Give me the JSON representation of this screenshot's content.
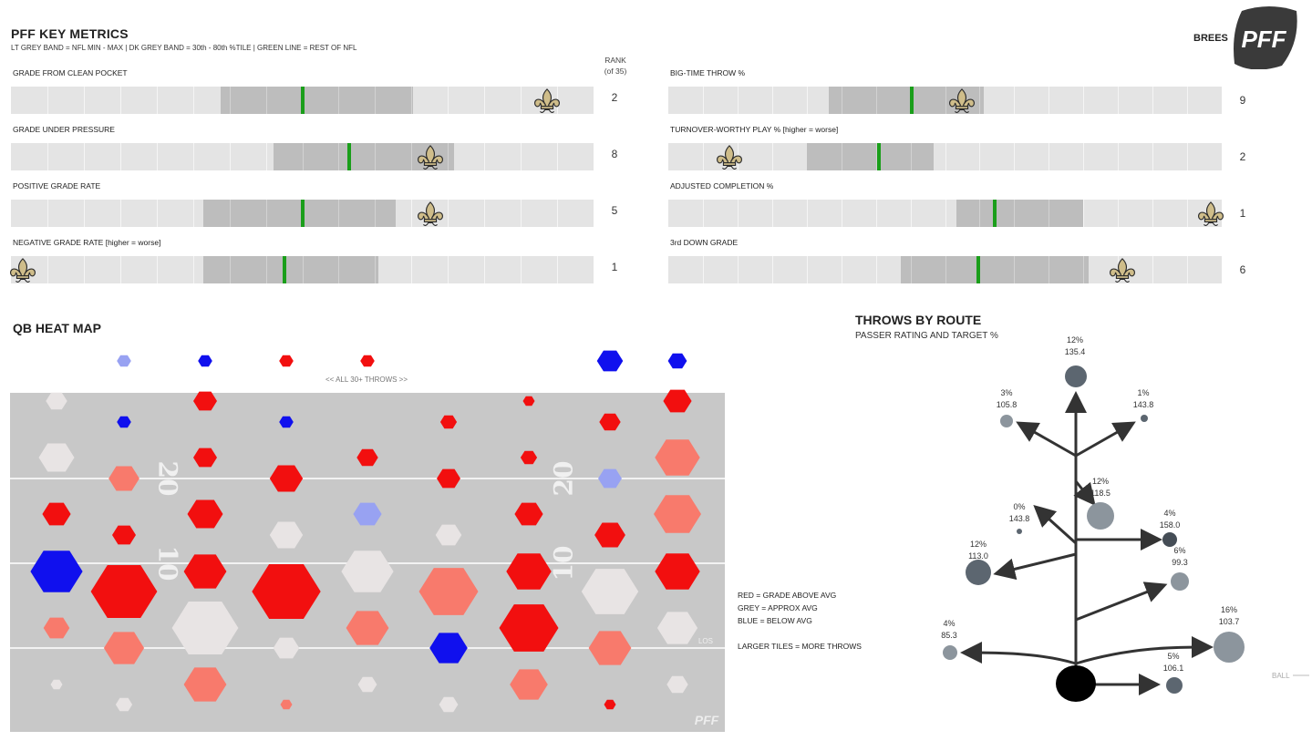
{
  "header": {
    "title": "PFF KEY METRICS",
    "subtitle": "LT GREY BAND = NFL MIN - MAX | DK GREY BAND = 30th - 80th %TILE | GREEN LINE = REST OF NFL",
    "player": "BREES",
    "rank_header": "RANK",
    "rank_sub": "(of 35)",
    "logo_text": "PFF"
  },
  "colors": {
    "light_band": "#e4e4e4",
    "dark_band": "#bdbdbd",
    "green_line": "#1a9e1a",
    "red": "#f20f0f",
    "salmon": "#f87a6c",
    "grey_tile": "#e8e4e4",
    "light_blue": "#98a2f2",
    "blue": "#1010ee",
    "field": "#c8c8c8",
    "saints_gold": "#cfbd8a"
  },
  "chart_data": [
    {
      "type": "bar",
      "title": "PFF KEY METRICS",
      "scale": "percentile position 0-100 within NFL min-max band",
      "metrics": [
        {
          "label": "GRADE FROM CLEAN POCKET",
          "band": [
            36,
            69
          ],
          "nfl": 50,
          "player": 92,
          "rank": "2"
        },
        {
          "label": "GRADE UNDER PRESSURE",
          "band": [
            45,
            76
          ],
          "nfl": 58,
          "player": 72,
          "rank": "8"
        },
        {
          "label": "POSITIVE GRADE RATE",
          "band": [
            33,
            66
          ],
          "nfl": 50,
          "player": 72,
          "rank": "5"
        },
        {
          "label": "NEGATIVE GRADE RATE [higher = worse]",
          "band": [
            33,
            63
          ],
          "nfl": 47,
          "player": 2,
          "rank": "1"
        },
        {
          "label": "BIG-TIME THROW %",
          "band": [
            29,
            57
          ],
          "nfl": 44,
          "player": 53,
          "rank": "9"
        },
        {
          "label": "TURNOVER-WORTHY PLAY %  [higher = worse]",
          "band": [
            25,
            48
          ],
          "nfl": 38,
          "player": 11,
          "rank": "2"
        },
        {
          "label": "ADJUSTED COMPLETION %",
          "band": [
            52,
            75
          ],
          "nfl": 59,
          "player": 98,
          "rank": "1"
        },
        {
          "label": "3rd DOWN GRADE",
          "band": [
            42,
            76
          ],
          "nfl": 56,
          "player": 82,
          "rank": "6"
        }
      ]
    },
    {
      "type": "heatmap",
      "title": "QB HEAT MAP",
      "annotation": "<< ALL 30+ THROWS >>",
      "yard_labels": [
        "20",
        "20",
        "10",
        "10"
      ],
      "los_label": "LOS",
      "watermark": "PFF",
      "columns": 9,
      "rows": 12,
      "cells": [
        {
          "c": 1,
          "r": 0,
          "size": 0.3,
          "color": "light_blue"
        },
        {
          "c": 2,
          "r": 0,
          "size": 0.3,
          "color": "blue"
        },
        {
          "c": 3,
          "r": 0,
          "size": 0.3,
          "color": "red"
        },
        {
          "c": 4,
          "r": 0,
          "size": 0.3,
          "color": "red"
        },
        {
          "c": 7,
          "r": 0,
          "size": 0.55,
          "color": "blue"
        },
        {
          "c": 8,
          "r": 0,
          "size": 0.4,
          "color": "blue"
        },
        {
          "c": 0,
          "r": 1,
          "size": 0.45,
          "color": "grey"
        },
        {
          "c": 2,
          "r": 1,
          "size": 0.5,
          "color": "red"
        },
        {
          "c": 6,
          "r": 1,
          "size": 0.25,
          "color": "red"
        },
        {
          "c": 8,
          "r": 1,
          "size": 0.6,
          "color": "red"
        },
        {
          "c": 1,
          "r": 2,
          "size": 0.3,
          "color": "blue"
        },
        {
          "c": 3,
          "r": 2,
          "size": 0.3,
          "color": "blue"
        },
        {
          "c": 5,
          "r": 2,
          "size": 0.35,
          "color": "red"
        },
        {
          "c": 7,
          "r": 2,
          "size": 0.45,
          "color": "red"
        },
        {
          "c": 0,
          "r": 3,
          "size": 0.75,
          "color": "grey"
        },
        {
          "c": 2,
          "r": 3,
          "size": 0.5,
          "color": "red"
        },
        {
          "c": 4,
          "r": 3,
          "size": 0.45,
          "color": "red"
        },
        {
          "c": 6,
          "r": 3,
          "size": 0.35,
          "color": "red"
        },
        {
          "c": 8,
          "r": 3,
          "size": 0.95,
          "color": "salmon"
        },
        {
          "c": 1,
          "r": 4,
          "size": 0.65,
          "color": "salmon"
        },
        {
          "c": 3,
          "r": 4,
          "size": 0.7,
          "color": "red"
        },
        {
          "c": 5,
          "r": 4,
          "size": 0.5,
          "color": "red"
        },
        {
          "c": 7,
          "r": 4,
          "size": 0.5,
          "color": "light_blue"
        },
        {
          "c": 0,
          "r": 5,
          "size": 0.6,
          "color": "red"
        },
        {
          "c": 2,
          "r": 5,
          "size": 0.75,
          "color": "red"
        },
        {
          "c": 4,
          "r": 5,
          "size": 0.6,
          "color": "light_blue"
        },
        {
          "c": 6,
          "r": 5,
          "size": 0.6,
          "color": "red"
        },
        {
          "c": 8,
          "r": 5,
          "size": 1.0,
          "color": "salmon"
        },
        {
          "c": 1,
          "r": 6,
          "size": 0.5,
          "color": "red"
        },
        {
          "c": 3,
          "r": 6,
          "size": 0.7,
          "color": "grey"
        },
        {
          "c": 5,
          "r": 6,
          "size": 0.55,
          "color": "grey"
        },
        {
          "c": 7,
          "r": 6,
          "size": 0.65,
          "color": "red"
        },
        {
          "c": 0,
          "r": 7,
          "size": 1.1,
          "color": "blue"
        },
        {
          "c": 2,
          "r": 7,
          "size": 0.9,
          "color": "red"
        },
        {
          "c": 4,
          "r": 7,
          "size": 1.1,
          "color": "grey"
        },
        {
          "c": 6,
          "r": 7,
          "size": 0.95,
          "color": "red"
        },
        {
          "c": 8,
          "r": 7,
          "size": 0.95,
          "color": "red"
        },
        {
          "c": 1,
          "r": 8,
          "size": 1.4,
          "color": "red"
        },
        {
          "c": 3,
          "r": 8,
          "size": 1.45,
          "color": "red"
        },
        {
          "c": 5,
          "r": 8,
          "size": 1.25,
          "color": "salmon"
        },
        {
          "c": 7,
          "r": 8,
          "size": 1.2,
          "color": "grey"
        },
        {
          "c": 0,
          "r": 9,
          "size": 0.55,
          "color": "salmon"
        },
        {
          "c": 2,
          "r": 9,
          "size": 1.4,
          "color": "grey"
        },
        {
          "c": 4,
          "r": 9,
          "size": 0.9,
          "color": "salmon"
        },
        {
          "c": 6,
          "r": 9,
          "size": 1.25,
          "color": "red"
        },
        {
          "c": 8,
          "r": 9,
          "size": 0.85,
          "color": "grey"
        },
        {
          "c": 1,
          "r": 10,
          "size": 0.85,
          "color": "salmon"
        },
        {
          "c": 3,
          "r": 10,
          "size": 0.55,
          "color": "grey"
        },
        {
          "c": 5,
          "r": 10,
          "size": 0.8,
          "color": "blue"
        },
        {
          "c": 7,
          "r": 10,
          "size": 0.9,
          "color": "salmon"
        },
        {
          "c": 0,
          "r": 11,
          "size": 0.25,
          "color": "grey"
        },
        {
          "c": 2,
          "r": 11,
          "size": 0.9,
          "color": "salmon"
        },
        {
          "c": 4,
          "r": 11,
          "size": 0.4,
          "color": "grey"
        },
        {
          "c": 6,
          "r": 11,
          "size": 0.8,
          "color": "salmon"
        },
        {
          "c": 8,
          "r": 11,
          "size": 0.45,
          "color": "grey"
        },
        {
          "c": 1,
          "r": 12,
          "size": 0.35,
          "color": "grey"
        },
        {
          "c": 3,
          "r": 12,
          "size": 0.25,
          "color": "salmon"
        },
        {
          "c": 5,
          "r": 12,
          "size": 0.4,
          "color": "grey"
        },
        {
          "c": 7,
          "r": 12,
          "size": 0.25,
          "color": "red"
        }
      ]
    },
    {
      "type": "scatter",
      "title": "THROWS BY ROUTE",
      "subtitle": "PASSER RATING AND TARGET %",
      "ball_label": "BALL",
      "routes": [
        {
          "pct": "12%",
          "rating": "135.4",
          "target": 12,
          "shade": "dark"
        },
        {
          "pct": "3%",
          "rating": "105.8",
          "target": 3,
          "shade": "mid"
        },
        {
          "pct": "1%",
          "rating": "143.8",
          "target": 1,
          "shade": "dark"
        },
        {
          "pct": "12%",
          "rating": "118.5",
          "target": 12,
          "shade": "mid"
        },
        {
          "pct": "0%",
          "rating": "143.8",
          "target": 0,
          "shade": "dark"
        },
        {
          "pct": "4%",
          "rating": "158.0",
          "target": 4,
          "shade": "darkest"
        },
        {
          "pct": "6%",
          "rating": "99.3",
          "target": 6,
          "shade": "mid"
        },
        {
          "pct": "12%",
          "rating": "113.0",
          "target": 12,
          "shade": "dark"
        },
        {
          "pct": "16%",
          "rating": "103.7",
          "target": 16,
          "shade": "mid"
        },
        {
          "pct": "4%",
          "rating": "85.3",
          "target": 4,
          "shade": "mid"
        },
        {
          "pct": "5%",
          "rating": "106.1",
          "target": 5,
          "shade": "dark"
        }
      ]
    }
  ],
  "legend": {
    "red": "RED = GRADE ABOVE AVG",
    "grey": "GREY = APPROX AVG",
    "blue": "BLUE = BELOW AVG",
    "size": "LARGER TILES = MORE THROWS"
  }
}
